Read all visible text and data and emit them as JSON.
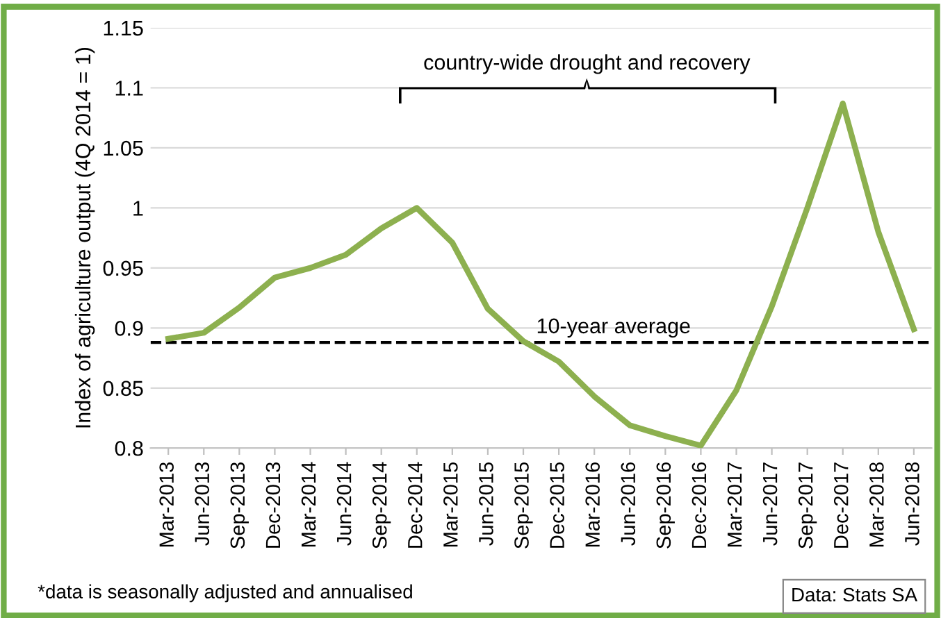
{
  "chart_data": {
    "type": "line",
    "ylabel": "Index of agriculture output (4Q 2014 = 1)",
    "categories": [
      "Mar-2013",
      "Jun-2013",
      "Sep-2013",
      "Dec-2013",
      "Mar-2014",
      "Jun-2014",
      "Sep-2014",
      "Dec-2014",
      "Mar-2015",
      "Jun-2015",
      "Sep-2015",
      "Dec-2015",
      "Mar-2016",
      "Jun-2016",
      "Sep-2016",
      "Dec-2016",
      "Mar-2017",
      "Jun-2017",
      "Sep-2017",
      "Dec-2017",
      "Mar-2018",
      "Jun-2018"
    ],
    "series": [
      {
        "color": "#8db04f",
        "values": [
          0.891,
          0.896,
          0.917,
          0.942,
          0.95,
          0.961,
          0.983,
          1.0,
          0.971,
          0.916,
          0.889,
          0.872,
          0.843,
          0.819,
          0.81,
          0.802,
          0.848,
          0.918,
          1.0,
          1.087,
          0.98,
          0.899
        ]
      }
    ],
    "ylim": [
      0.8,
      1.15
    ],
    "yticks": [
      0.8,
      0.85,
      0.9,
      0.95,
      1,
      1.05,
      1.1,
      1.15
    ],
    "grid": "y",
    "marker": "none",
    "line_style": "solid",
    "legend": false,
    "ref_lines": [
      {
        "axis": "y",
        "value": 0.888,
        "label": "10-year average",
        "color": "#000000",
        "line_style": "dashed"
      }
    ],
    "annotations": [
      "country-wide drought and recovery",
      "*data is seasonally adjusted and annualised",
      "Data: Stats SA"
    ]
  }
}
